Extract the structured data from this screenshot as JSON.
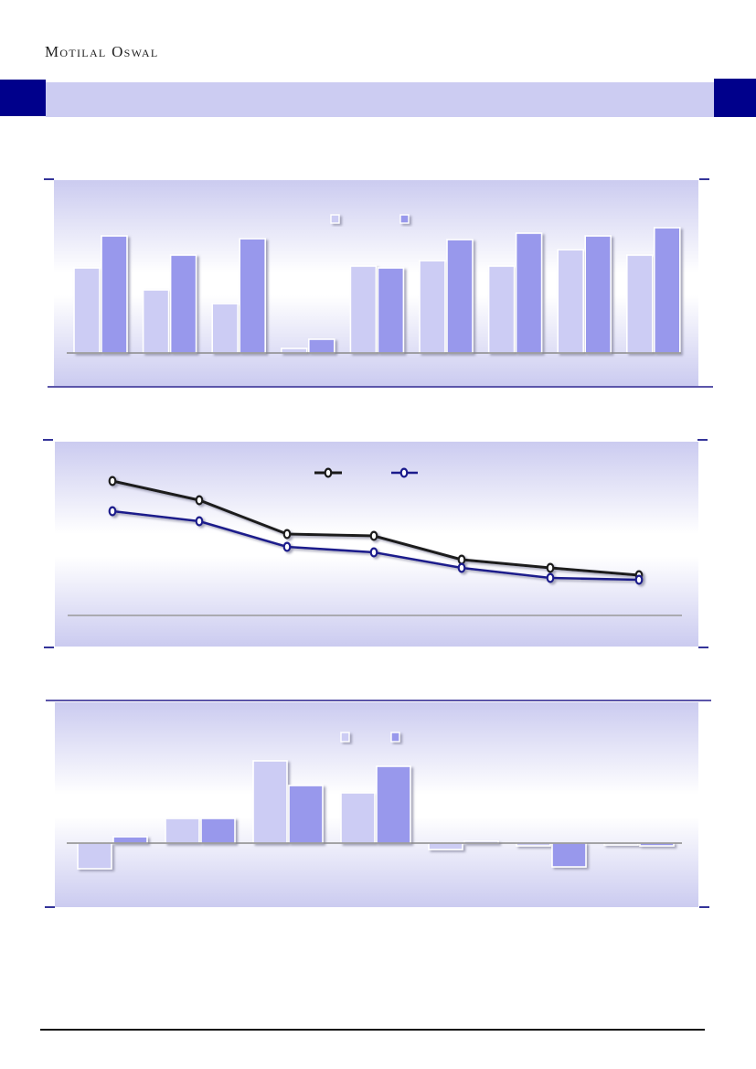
{
  "page": {
    "brand": "Motilal Oswal"
  },
  "colors": {
    "navy_block": "#00008B",
    "band_lavender": "#CCCCF2",
    "bar_light": "#CCCCF4",
    "bar_dark": "#9898EC",
    "line_black": "#1A1A1A",
    "line_navy": "#1B1B8C",
    "axis_gray": "#8A8A8A",
    "frame_purple": "#5B55AA",
    "tick_navy": "#343499",
    "marker_fill": "#FFFFFF"
  },
  "chart_data": [
    {
      "id": "chart1",
      "type": "bar",
      "title": "",
      "note": "grouped bar chart, no visible axis or data labels; values are relative units read from bar heights",
      "categories": [
        "",
        "",
        "",
        "",
        "",
        "",
        "",
        "",
        ""
      ],
      "series": [
        {
          "name": "",
          "color_key": "bar_light",
          "values": [
            93,
            69,
            54,
            5,
            95,
            101,
            95,
            113,
            107
          ]
        },
        {
          "name": "",
          "color_key": "bar_dark",
          "values": [
            128,
            107,
            125,
            15,
            93,
            124,
            131,
            128,
            137
          ]
        }
      ],
      "xlabel": "",
      "ylabel": "",
      "ylim": [
        0,
        189
      ],
      "grid": false,
      "legend_position": "top-center"
    },
    {
      "id": "chart2",
      "type": "line",
      "title": "",
      "note": "two declining lines with circular markers, no visible axis or data labels; values are relative units above baseline",
      "categories": [
        "",
        "",
        "",
        "",
        "",
        "",
        ""
      ],
      "series": [
        {
          "name": "",
          "color_key": "line_black",
          "values": [
            147,
            126,
            89,
            87,
            61,
            52,
            44
          ]
        },
        {
          "name": "",
          "color_key": "line_navy",
          "values": [
            114,
            103,
            75,
            69,
            52,
            41,
            39
          ]
        }
      ],
      "xlabel": "",
      "ylabel": "",
      "ylim": [
        0,
        190
      ],
      "grid": false,
      "legend_position": "top-center"
    },
    {
      "id": "chart3",
      "type": "bar",
      "title": "",
      "note": "grouped bar chart with positive and negative bars, no visible axis or data labels; relative units",
      "categories": [
        "",
        "",
        "",
        "",
        "",
        "",
        ""
      ],
      "series": [
        {
          "name": "",
          "color_key": "bar_light",
          "values": [
            -28,
            27,
            90,
            55,
            -7,
            -3,
            -2
          ]
        },
        {
          "name": "",
          "color_key": "bar_dark",
          "values": [
            7,
            27,
            63,
            84,
            2,
            -26,
            -3
          ]
        }
      ],
      "xlabel": "",
      "ylabel": "",
      "ylim": [
        -70,
        154
      ],
      "grid": false,
      "legend_position": "top-center"
    }
  ]
}
